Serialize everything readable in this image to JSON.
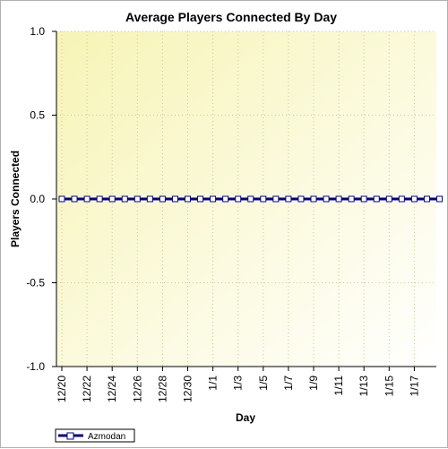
{
  "chart_data": {
    "type": "line",
    "title": "Average Players Connected By Day",
    "xlabel": "Day",
    "ylabel": "Players Connected",
    "ylim": [
      -1.0,
      1.0
    ],
    "y_ticks": [
      "1.0",
      "0.5",
      "0.0",
      "-0.5",
      "-1.0"
    ],
    "y_tick_values": [
      1.0,
      0.5,
      0.0,
      -0.5,
      -1.0
    ],
    "x_tick_labels": [
      "12/20",
      "12/22",
      "12/24",
      "12/26",
      "12/28",
      "12/30",
      "1/1",
      "1/3",
      "1/5",
      "1/7",
      "1/9",
      "1/11",
      "1/13",
      "1/15",
      "1/17"
    ],
    "x": [
      "12/20",
      "12/21",
      "12/22",
      "12/23",
      "12/24",
      "12/25",
      "12/26",
      "12/27",
      "12/28",
      "12/29",
      "12/30",
      "12/31",
      "1/1",
      "1/2",
      "1/3",
      "1/4",
      "1/5",
      "1/6",
      "1/7",
      "1/8",
      "1/9",
      "1/10",
      "1/11",
      "1/12",
      "1/13",
      "1/14",
      "1/15",
      "1/16",
      "1/17",
      "1/18",
      "1/19"
    ],
    "series": [
      {
        "name": "Azmodan",
        "values": [
          0,
          0,
          0,
          0,
          0,
          0,
          0,
          0,
          0,
          0,
          0,
          0,
          0,
          0,
          0,
          0,
          0,
          0,
          0,
          0,
          0,
          0,
          0,
          0,
          0,
          0,
          0,
          0,
          0,
          0,
          0
        ],
        "color": "#00008b"
      }
    ],
    "grid": true,
    "legend_position": "bottom-left",
    "plot_background": [
      "#f7f4b6",
      "#ffffff"
    ]
  }
}
